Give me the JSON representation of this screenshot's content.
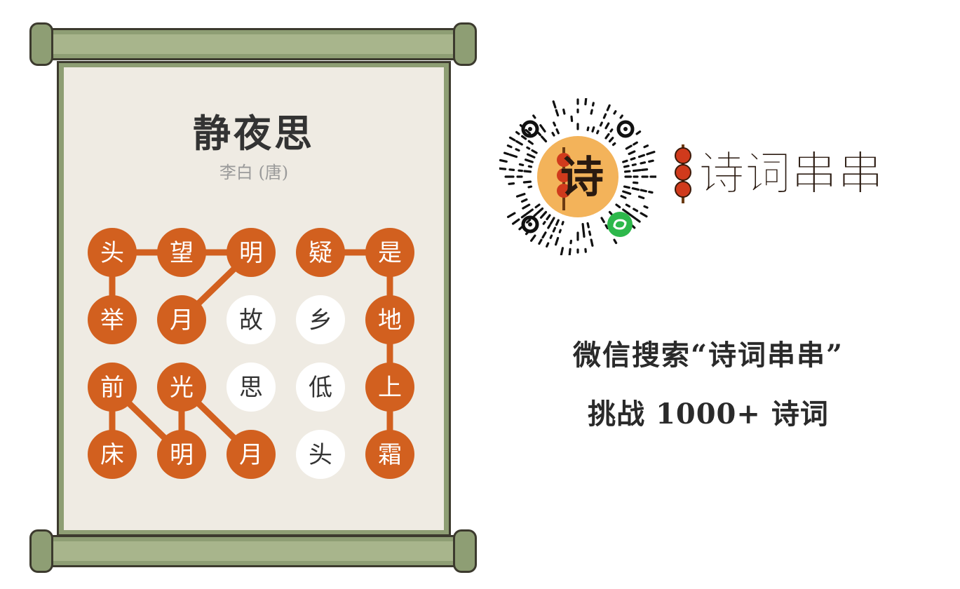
{
  "poem": {
    "title": "静夜思",
    "author": "李白 (唐)"
  },
  "board": {
    "rows": [
      [
        {
          "char": "头",
          "selected": true
        },
        {
          "char": "望",
          "selected": true
        },
        {
          "char": "明",
          "selected": true
        },
        {
          "char": "疑",
          "selected": true
        },
        {
          "char": "是",
          "selected": true
        }
      ],
      [
        {
          "char": "举",
          "selected": true
        },
        {
          "char": "月",
          "selected": true
        },
        {
          "char": "故",
          "selected": false
        },
        {
          "char": "乡",
          "selected": false
        },
        {
          "char": "地",
          "selected": true
        }
      ],
      [
        {
          "char": "前",
          "selected": true
        },
        {
          "char": "光",
          "selected": true
        },
        {
          "char": "思",
          "selected": false
        },
        {
          "char": "低",
          "selected": false
        },
        {
          "char": "上",
          "selected": true
        }
      ],
      [
        {
          "char": "床",
          "selected": true
        },
        {
          "char": "明",
          "selected": true
        },
        {
          "char": "月",
          "selected": true
        },
        {
          "char": "头",
          "selected": false
        },
        {
          "char": "霜",
          "selected": true
        }
      ]
    ],
    "paths": [
      [
        [
          0,
          0
        ],
        [
          0,
          1
        ],
        [
          0,
          2
        ],
        [
          1,
          1
        ]
      ],
      [
        [
          0,
          3
        ],
        [
          0,
          4
        ],
        [
          1,
          4
        ],
        [
          2,
          4
        ],
        [
          3,
          4
        ]
      ],
      [
        [
          1,
          0
        ],
        [
          0,
          0
        ]
      ],
      [
        [
          2,
          0
        ],
        [
          3,
          0
        ]
      ],
      [
        [
          2,
          0
        ],
        [
          3,
          1
        ],
        [
          2,
          1
        ],
        [
          3,
          2
        ]
      ]
    ],
    "colors": {
      "selected_fill": "#d2601f",
      "selected_text": "#ffffff",
      "unselected_fill": "#ffffff",
      "unselected_text": "#333333",
      "link": "#d2601f"
    }
  },
  "promo": {
    "brand_name": "诗词串串",
    "qr_center_char": "诗",
    "search_line": "微信搜索“诗词串串”",
    "challenge_line": "挑战 1000+ 诗词"
  }
}
